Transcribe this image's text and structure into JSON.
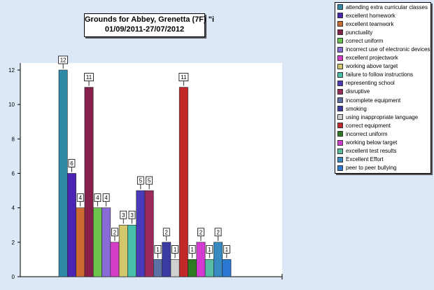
{
  "chart_data": {
    "type": "bar",
    "title_line1": "Grounds for Abbey, Grenetta  (7F)   \"i",
    "title_line2": "01/09/2011-27/07/2012",
    "xlabel": "",
    "ylabel": "",
    "ylim": [
      0,
      12
    ],
    "yticks": [
      "0",
      "2",
      "4",
      "6",
      "8",
      "10",
      "12"
    ],
    "grid": false,
    "legend_position": "top-right",
    "data_labels": true,
    "series": [
      {
        "name": "attending extra curricular classes",
        "value": 12,
        "color": "#2e8aa6"
      },
      {
        "name": "excellent homework",
        "value": 6,
        "color": "#4b24b5"
      },
      {
        "name": "excellent teamwork",
        "value": 4,
        "color": "#cc6a32"
      },
      {
        "name": "punctuality",
        "value": 11,
        "color": "#86204a"
      },
      {
        "name": "correct uniform",
        "value": 4,
        "color": "#6cc44f"
      },
      {
        "name": "incorrect use of electronic devices",
        "value": 4,
        "color": "#8a6ad6"
      },
      {
        "name": "excellent projectwork",
        "value": 2,
        "color": "#d43cc6"
      },
      {
        "name": "working above target",
        "value": 3,
        "color": "#d4c66a"
      },
      {
        "name": "failure to follow instructions",
        "value": 3,
        "color": "#47bfaa"
      },
      {
        "name": "representing school",
        "value": 5,
        "color": "#4a3aba"
      },
      {
        "name": "disruptive",
        "value": 5,
        "color": "#9c2a58"
      },
      {
        "name": "incomplete equipment",
        "value": 1,
        "color": "#5a72a6"
      },
      {
        "name": "smoking",
        "value": 2,
        "color": "#3a3aa2"
      },
      {
        "name": "using inappropriate language",
        "value": 1,
        "color": "#d0d0d0"
      },
      {
        "name": "correct equipment",
        "value": 11,
        "color": "#c22a2a"
      },
      {
        "name": "incorrect uniform",
        "value": 1,
        "color": "#2e7a22"
      },
      {
        "name": "working below target",
        "value": 2,
        "color": "#d23ad2"
      },
      {
        "name": "excellent test results",
        "value": 1,
        "color": "#56bca2"
      },
      {
        "name": "Excellent Effort",
        "value": 2,
        "color": "#3a8ac2"
      },
      {
        "name": "peer to peer bullying",
        "value": 1,
        "color": "#2a78d2"
      }
    ]
  }
}
